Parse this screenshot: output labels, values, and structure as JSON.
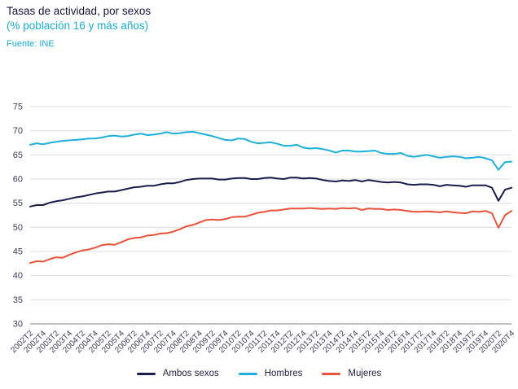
{
  "header": {
    "title": "Tasas de actividad, por sexos",
    "subtitle": "(% población 16 y más años)",
    "source": "Fuente: INE"
  },
  "colors": {
    "title_text": "#16163d",
    "accent_cyan_text": "#16aed8",
    "grid_line": "#dcdcdc",
    "axis_line": "#808080",
    "tick_text": "#3c3c58"
  },
  "chart_data": {
    "type": "line",
    "title": "Tasas de actividad, por sexos",
    "subtitle": "(% población 16 y más años)",
    "source": "Fuente: INE",
    "xlabel": "",
    "ylabel": "",
    "ylim": [
      30,
      75
    ],
    "y_ticks": [
      30,
      35,
      40,
      45,
      50,
      55,
      60,
      65,
      70,
      75
    ],
    "grid": "horizontal",
    "x_label_every": 2,
    "legend_position": "bottom",
    "x": [
      "2002T2",
      "2002T3",
      "2002T4",
      "2003T1",
      "2003T2",
      "2003T3",
      "2003T4",
      "2004T1",
      "2004T2",
      "2004T3",
      "2004T4",
      "2005T1",
      "2005T2",
      "2005T3",
      "2005T4",
      "2006T1",
      "2006T2",
      "2006T3",
      "2006T4",
      "2007T1",
      "2007T2",
      "2007T3",
      "2007T4",
      "2008T1",
      "2008T2",
      "2008T3",
      "2008T4",
      "2009T1",
      "2009T2",
      "2009T3",
      "2009T4",
      "2010T1",
      "2010T2",
      "2010T3",
      "2010T4",
      "2011T1",
      "2011T2",
      "2011T3",
      "2011T4",
      "2012T1",
      "2012T2",
      "2012T3",
      "2012T4",
      "2013T1",
      "2013T2",
      "2013T3",
      "2013T4",
      "2014T1",
      "2014T2",
      "2014T3",
      "2014T4",
      "2015T1",
      "2015T2",
      "2015T3",
      "2015T4",
      "2016T1",
      "2016T2",
      "2016T3",
      "2016T4",
      "2017T1",
      "2017T2",
      "2017T3",
      "2017T4",
      "2018T1",
      "2018T2",
      "2018T3",
      "2018T4",
      "2019T1",
      "2019T2",
      "2019T3",
      "2019T4",
      "2020T1",
      "2020T2",
      "2020T3",
      "2020T4"
    ],
    "series": [
      {
        "name": "Ambos sexos",
        "color": "#1b1c4e",
        "values": [
          54.3,
          54.6,
          54.6,
          55.1,
          55.4,
          55.6,
          55.9,
          56.2,
          56.4,
          56.7,
          57.0,
          57.2,
          57.4,
          57.4,
          57.7,
          58.0,
          58.3,
          58.4,
          58.6,
          58.6,
          58.9,
          59.1,
          59.1,
          59.4,
          59.8,
          60.0,
          60.1,
          60.1,
          60.1,
          59.9,
          59.9,
          60.1,
          60.2,
          60.2,
          60.0,
          60.0,
          60.2,
          60.3,
          60.1,
          60.0,
          60.3,
          60.3,
          60.1,
          60.2,
          60.1,
          59.8,
          59.6,
          59.5,
          59.7,
          59.6,
          59.8,
          59.5,
          59.8,
          59.6,
          59.4,
          59.3,
          59.4,
          59.3,
          58.9,
          58.8,
          58.9,
          58.9,
          58.8,
          58.5,
          58.8,
          58.7,
          58.6,
          58.4,
          58.7,
          58.7,
          58.7,
          58.2,
          55.5,
          57.8,
          58.2
        ]
      },
      {
        "name": "Hombres",
        "color": "#1cb0dc",
        "values": [
          67.1,
          67.4,
          67.2,
          67.5,
          67.7,
          67.9,
          68.0,
          68.1,
          68.2,
          68.4,
          68.4,
          68.6,
          68.9,
          69.0,
          68.8,
          68.9,
          69.2,
          69.4,
          69.1,
          69.2,
          69.4,
          69.7,
          69.4,
          69.5,
          69.7,
          69.8,
          69.5,
          69.2,
          68.9,
          68.5,
          68.1,
          68.0,
          68.4,
          68.3,
          67.7,
          67.4,
          67.5,
          67.6,
          67.3,
          66.9,
          66.9,
          67.1,
          66.5,
          66.3,
          66.4,
          66.2,
          65.9,
          65.5,
          65.9,
          65.9,
          65.7,
          65.7,
          65.8,
          65.9,
          65.4,
          65.2,
          65.2,
          65.4,
          64.8,
          64.6,
          64.8,
          65.0,
          64.7,
          64.4,
          64.6,
          64.7,
          64.6,
          64.3,
          64.4,
          64.6,
          64.3,
          63.9,
          61.9,
          63.5,
          63.6
        ]
      },
      {
        "name": "Mujeres",
        "color": "#e95238",
        "values": [
          42.6,
          43.0,
          42.9,
          43.4,
          43.8,
          43.7,
          44.3,
          44.8,
          45.2,
          45.4,
          45.8,
          46.3,
          46.5,
          46.4,
          46.9,
          47.5,
          47.8,
          47.9,
          48.3,
          48.4,
          48.7,
          48.8,
          49.1,
          49.6,
          50.2,
          50.5,
          51.0,
          51.5,
          51.6,
          51.5,
          51.7,
          52.1,
          52.2,
          52.2,
          52.6,
          53.0,
          53.2,
          53.5,
          53.5,
          53.7,
          53.9,
          53.9,
          53.9,
          54.0,
          53.9,
          53.8,
          53.9,
          53.8,
          54.0,
          53.9,
          54.0,
          53.6,
          53.9,
          53.8,
          53.8,
          53.6,
          53.7,
          53.6,
          53.4,
          53.2,
          53.2,
          53.3,
          53.2,
          53.1,
          53.3,
          53.1,
          53.0,
          52.9,
          53.3,
          53.2,
          53.4,
          52.9,
          49.9,
          52.5,
          53.4
        ]
      }
    ]
  }
}
